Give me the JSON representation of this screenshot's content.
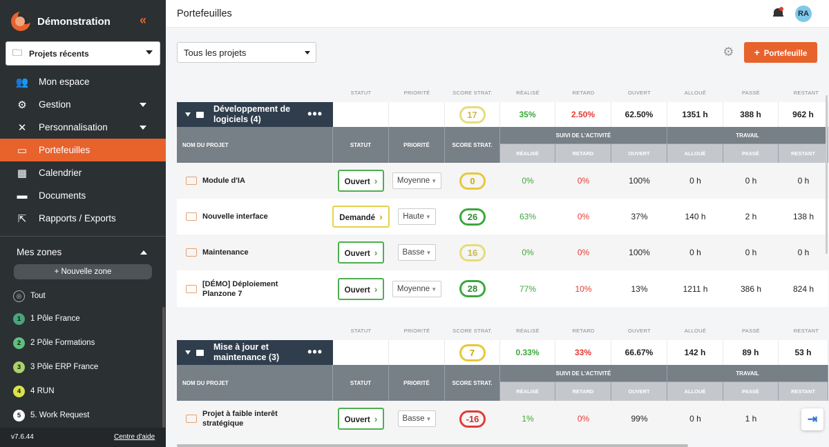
{
  "app": {
    "name": "Démonstration",
    "version": "v7.6.44",
    "help_link": "Centre d'aide"
  },
  "sidebar": {
    "recent": "Projets récents",
    "items": [
      {
        "label": "Mon espace",
        "icon": "users-icon"
      },
      {
        "label": "Gestion",
        "icon": "users-group-icon"
      },
      {
        "label": "Personnalisation",
        "icon": "tools-icon"
      },
      {
        "label": "Portefeuilles",
        "icon": "folders-icon"
      },
      {
        "label": "Calendrier",
        "icon": "calendar-icon"
      },
      {
        "label": "Documents",
        "icon": "inbox-icon"
      },
      {
        "label": "Rapports / Exports",
        "icon": "share-icon"
      }
    ],
    "zones_title": "Mes zones",
    "new_zone": "+ Nouvelle zone",
    "zones": [
      {
        "badge": "",
        "label": "Tout"
      },
      {
        "badge": "1",
        "label": "1 Pôle France",
        "color": "#4aa37a"
      },
      {
        "badge": "2",
        "label": "2 Pôle Formations",
        "color": "#5fbf7f"
      },
      {
        "badge": "3",
        "label": "3 Pôle ERP France",
        "color": "#a9d36a"
      },
      {
        "badge": "4",
        "label": "4 RUN",
        "color": "#d9e44a"
      },
      {
        "badge": "5",
        "label": "5. Work Request",
        "color": "#ffffff"
      }
    ]
  },
  "header": {
    "title": "Portefeuilles",
    "avatar": "RA"
  },
  "toolbar": {
    "filter": "Tous les projets",
    "add_button": "Portefeuille"
  },
  "columns": {
    "statut": "STATUT",
    "priorite": "PRIORITÉ",
    "score": "SCORE STRAT.",
    "realise": "RÉALISÉ",
    "retard": "RETARD",
    "ouvert": "OUVERT",
    "alloue": "ALLOUÉ",
    "passe": "PASSÉ",
    "restant": "RESTANT",
    "nom": "NOM DU PROJET",
    "suivi": "SUIVI DE L'ACTIVITÉ",
    "travail": "TRAVAIL"
  },
  "groups": [
    {
      "title": "Développement de logiciels (4)",
      "summary": {
        "score": "17",
        "realise": "35%",
        "retard": "2.50%",
        "ouvert": "62.50%",
        "alloue": "1351 h",
        "passe": "388 h",
        "restant": "962 h"
      },
      "projects": [
        {
          "name": "Module d'IA",
          "status": "Ouvert",
          "priority": "Moyenne",
          "score": "0",
          "realise": "0%",
          "retard": "0%",
          "ouvert": "100%",
          "alloue": "0 h",
          "passe": "0 h",
          "restant": "0 h"
        },
        {
          "name": "Nouvelle interface",
          "status": "Demandé",
          "priority": "Haute",
          "score": "26",
          "realise": "63%",
          "retard": "0%",
          "ouvert": "37%",
          "alloue": "140 h",
          "passe": "2 h",
          "restant": "138 h"
        },
        {
          "name": "Maintenance",
          "status": "Ouvert",
          "priority": "Basse",
          "score": "16",
          "realise": "0%",
          "retard": "0%",
          "ouvert": "100%",
          "alloue": "0 h",
          "passe": "0 h",
          "restant": "0 h"
        },
        {
          "name": "[DÉMO] Déploiement Planzone 7",
          "status": "Ouvert",
          "priority": "Moyenne",
          "score": "28",
          "realise": "77%",
          "retard": "10%",
          "ouvert": "13%",
          "alloue": "1211 h",
          "passe": "386 h",
          "restant": "824 h"
        }
      ]
    },
    {
      "title": "Mise à jour et maintenance (3)",
      "summary": {
        "score": "7",
        "realise": "0.33%",
        "retard": "33%",
        "ouvert": "66.67%",
        "alloue": "142 h",
        "passe": "89 h",
        "restant": "53 h"
      },
      "projects": [
        {
          "name": "Projet à faible interêt stratégique",
          "status": "Ouvert",
          "priority": "Basse",
          "score": "-16",
          "realise": "1%",
          "retard": "0%",
          "ouvert": "99%",
          "alloue": "0 h",
          "passe": "1 h",
          "restant": ""
        }
      ]
    }
  ],
  "colors": {
    "accent": "#e8622c",
    "sidebar": "#2b3033",
    "group_header": "#2f3d4d",
    "green": "#3aa83a",
    "red": "#e53935"
  }
}
